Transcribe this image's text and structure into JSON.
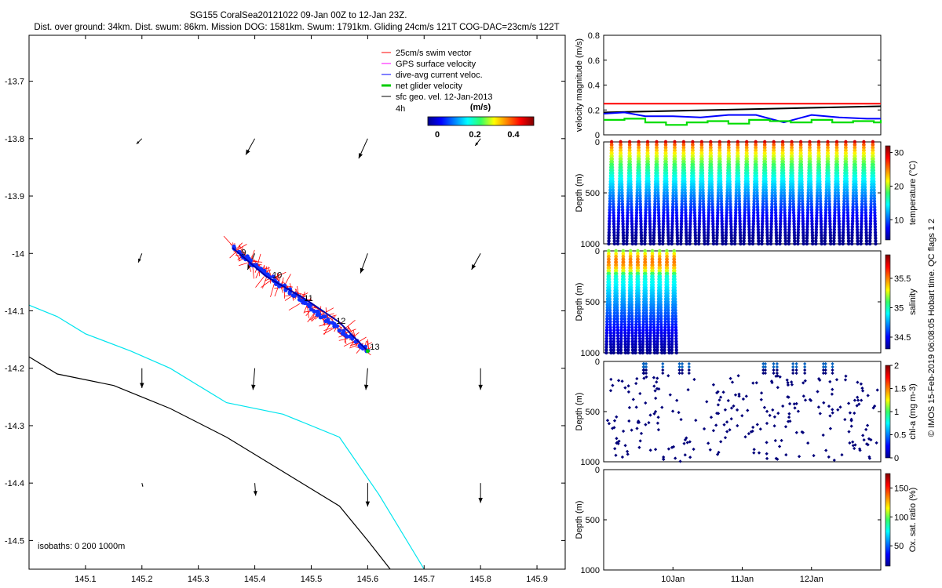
{
  "header": {
    "line1": "SG155 CoralSea20121022 09-Jan 00Z to 12-Jan 23Z.",
    "line2": "Dist. over ground: 34km. Dist. swum: 86km. Mission DOG: 1581km. Swum: 1791km. Gliding 24cm/s 121T COG-DAC=23cm/s 122T"
  },
  "map": {
    "legend": [
      {
        "label": "25cm/s swim vector",
        "color": "#ff0000"
      },
      {
        "label": "GPS surface velocity",
        "color": "#ff00ff"
      },
      {
        "label": "dive-avg current veloc.",
        "color": "#0000ff"
      },
      {
        "label": "net glider velocity",
        "color": "#00cc00"
      },
      {
        "label": "sfc geo. vel. 12-Jan-2013",
        "color": "#000000"
      }
    ],
    "time_label": "4h",
    "colorbar": {
      "unit": "(m/s)",
      "ticks": [
        "0",
        "0.2",
        "0.4"
      ]
    },
    "isobaths_label": "isobaths: 0   200  1000m",
    "day_labels": [
      "9",
      "10",
      "11",
      "12",
      "13"
    ],
    "isobath_colors": {
      "200m": "#00e5ee",
      "1000m": "#000000"
    }
  },
  "side_text": "© IMOS 15-Feb-2019 06:08:05 Hobart time. QC flags 1  2",
  "chart_data": [
    {
      "type": "scatter",
      "title": "",
      "xlim": [
        145.0,
        145.95
      ],
      "ylim": [
        -14.55,
        -13.62
      ],
      "xticks": [
        145.1,
        145.2,
        145.3,
        145.4,
        145.5,
        145.6,
        145.7,
        145.8,
        145.9
      ],
      "xtick_labels": [
        "145.1",
        "145.2",
        "145.3",
        "145.4",
        "145.5",
        "145.6",
        "145.7",
        "145.8",
        "145.9"
      ],
      "yticks": [
        -13.7,
        -13.8,
        -13.9,
        -14.0,
        -14.1,
        -14.2,
        -14.3,
        -14.4,
        -14.5
      ],
      "ytick_labels": [
        "-13.7",
        "-13.8",
        "-13.9",
        "-14",
        "-14.1",
        "-14.2",
        "-14.3",
        "-14.4",
        "-14.5"
      ],
      "track": {
        "lon": [
          145.36,
          145.42,
          145.49,
          145.55,
          145.6
        ],
        "lat": [
          -13.99,
          -14.04,
          -14.08,
          -14.12,
          -14.17
        ]
      },
      "day_marks": [
        {
          "label": "9",
          "lon": 145.372,
          "lat": -14.0
        },
        {
          "label": "10",
          "lon": 145.427,
          "lat": -14.04
        },
        {
          "label": "11",
          "lon": 145.483,
          "lat": -14.08
        },
        {
          "label": "12",
          "lon": 145.54,
          "lat": -14.12
        },
        {
          "label": "13",
          "lon": 145.6,
          "lat": -14.165
        }
      ],
      "geo_vel_arrows": [
        {
          "lon": 145.2,
          "lat": -13.8,
          "u": -0.03,
          "v": -0.03
        },
        {
          "lon": 145.4,
          "lat": -13.8,
          "u": -0.05,
          "v": -0.09
        },
        {
          "lon": 145.6,
          "lat": -13.8,
          "u": -0.05,
          "v": -0.11
        },
        {
          "lon": 145.8,
          "lat": -13.8,
          "u": -0.03,
          "v": -0.04
        },
        {
          "lon": 145.2,
          "lat": -14.0,
          "u": -0.02,
          "v": -0.05
        },
        {
          "lon": 145.4,
          "lat": -14.0,
          "u": -0.04,
          "v": -0.09
        },
        {
          "lon": 145.6,
          "lat": -14.0,
          "u": -0.04,
          "v": -0.11
        },
        {
          "lon": 145.8,
          "lat": -14.0,
          "u": -0.05,
          "v": -0.09
        },
        {
          "lon": 145.2,
          "lat": -14.2,
          "u": 0.0,
          "v": -0.11
        },
        {
          "lon": 145.4,
          "lat": -14.2,
          "u": -0.01,
          "v": -0.12
        },
        {
          "lon": 145.6,
          "lat": -14.2,
          "u": -0.01,
          "v": -0.12
        },
        {
          "lon": 145.8,
          "lat": -14.2,
          "u": 0.0,
          "v": -0.12
        },
        {
          "lon": 145.2,
          "lat": -14.4,
          "u": 0.005,
          "v": -0.02
        },
        {
          "lon": 145.4,
          "lat": -14.4,
          "u": 0.005,
          "v": -0.07
        },
        {
          "lon": 145.6,
          "lat": -14.4,
          "u": 0.0,
          "v": -0.13
        },
        {
          "lon": 145.8,
          "lat": -14.4,
          "u": 0.0,
          "v": -0.11
        }
      ],
      "isobath_200": {
        "lon": [
          145.0,
          145.05,
          145.1,
          145.18,
          145.25,
          145.3,
          145.35,
          145.45,
          145.55,
          145.62,
          145.7
        ],
        "lat": [
          -14.09,
          -14.11,
          -14.14,
          -14.17,
          -14.2,
          -14.23,
          -14.26,
          -14.28,
          -14.32,
          -14.42,
          -14.55
        ]
      },
      "isobath_1000": {
        "lon": [
          145.0,
          145.05,
          145.15,
          145.25,
          145.35,
          145.45,
          145.55,
          145.6,
          145.64
        ],
        "lat": [
          -14.18,
          -14.21,
          -14.23,
          -14.27,
          -14.32,
          -14.38,
          -14.44,
          -14.5,
          -14.55
        ]
      }
    },
    {
      "type": "line",
      "ylabel": "velocity magnitude (m/s)",
      "ylim": [
        0,
        0.8
      ],
      "yticks": [
        0,
        0.2,
        0.4,
        0.6,
        0.8
      ],
      "ytick_labels": [
        "0",
        "0.2",
        "0.4",
        "0.6",
        "0.8"
      ],
      "xlim": [
        0,
        4
      ],
      "series": [
        {
          "color": "#ff0000",
          "x": [
            0,
            4
          ],
          "values": [
            0.25,
            0.25
          ]
        },
        {
          "color": "#000000",
          "x": [
            0,
            4
          ],
          "values": [
            0.18,
            0.23
          ]
        },
        {
          "color": "#0000ff",
          "x": [
            0,
            0.3,
            0.6,
            1.0,
            1.4,
            1.8,
            2.2,
            2.6,
            3.0,
            3.4,
            3.8,
            4.0
          ],
          "values": [
            0.17,
            0.18,
            0.15,
            0.15,
            0.14,
            0.16,
            0.16,
            0.1,
            0.16,
            0.14,
            0.13,
            0.13
          ]
        },
        {
          "color": "#00dd00",
          "x": [
            0,
            0.3,
            0.6,
            0.9,
            1.2,
            1.5,
            1.8,
            2.1,
            2.4,
            2.7,
            3.0,
            3.3,
            3.6,
            3.9,
            4.0
          ],
          "values": [
            0.12,
            0.13,
            0.1,
            0.08,
            0.1,
            0.11,
            0.09,
            0.12,
            0.11,
            0.1,
            0.12,
            0.1,
            0.11,
            0.1,
            0.12
          ]
        }
      ]
    },
    {
      "type": "scatter",
      "ylabel": "Depth (m)",
      "ylim": [
        1000,
        0
      ],
      "yticks": [
        0,
        500,
        1000
      ],
      "ytick_labels": [
        "0",
        "500",
        "1000"
      ],
      "xlim": [
        0,
        4
      ],
      "n_profiles": 30,
      "profile_extent": [
        0.05,
        3.95
      ],
      "max_depth": 1000,
      "colorbar": {
        "label": "temperature (°C)",
        "ticks": [
          "10",
          "20",
          "30"
        ],
        "range": [
          4,
          32
        ],
        "tick_values": [
          10,
          20,
          30
        ]
      }
    },
    {
      "type": "scatter",
      "ylabel": "Depth (m)",
      "ylim": [
        1000,
        0
      ],
      "yticks": [
        0,
        500,
        1000
      ],
      "ytick_labels": [
        "0",
        "500",
        "1000"
      ],
      "xlim": [
        0,
        4
      ],
      "n_profiles": 10,
      "profile_extent": [
        0.02,
        1.07
      ],
      "max_depth": 1000,
      "colorbar": {
        "label": "salinity",
        "ticks": [
          "34.5",
          "35",
          "35.5"
        ],
        "range": [
          34.3,
          35.9
        ],
        "tick_values": [
          34.5,
          35,
          35.5
        ]
      }
    },
    {
      "type": "scatter",
      "ylabel": "Depth (m)",
      "ylim": [
        1000,
        0
      ],
      "yticks": [
        0,
        500,
        1000
      ],
      "ytick_labels": [
        "0",
        "500",
        "1000"
      ],
      "xlim": [
        0,
        4
      ],
      "colorbar": {
        "label": "chl-a (mg m-3)",
        "ticks": [
          "0",
          "0.5",
          "1",
          "1.5",
          "2"
        ],
        "range": [
          0,
          2
        ],
        "tick_values": [
          0,
          0.5,
          1,
          1.5,
          2
        ]
      }
    },
    {
      "type": "scatter",
      "ylabel": "Depth (m)",
      "ylim": [
        1000,
        0
      ],
      "yticks": [
        0,
        500,
        1000
      ],
      "ytick_labels": [
        "0",
        "500",
        "1000"
      ],
      "xlim": [
        0,
        4
      ],
      "xticks": [
        1,
        2,
        3
      ],
      "xtick_labels": [
        "10Jan",
        "11Jan",
        "12Jan"
      ],
      "colorbar": {
        "label": "Ox. sat. ratio (%)",
        "ticks": [
          "50",
          "100",
          "150"
        ],
        "range": [
          15,
          175
        ],
        "tick_values": [
          50,
          100,
          150
        ]
      }
    }
  ]
}
